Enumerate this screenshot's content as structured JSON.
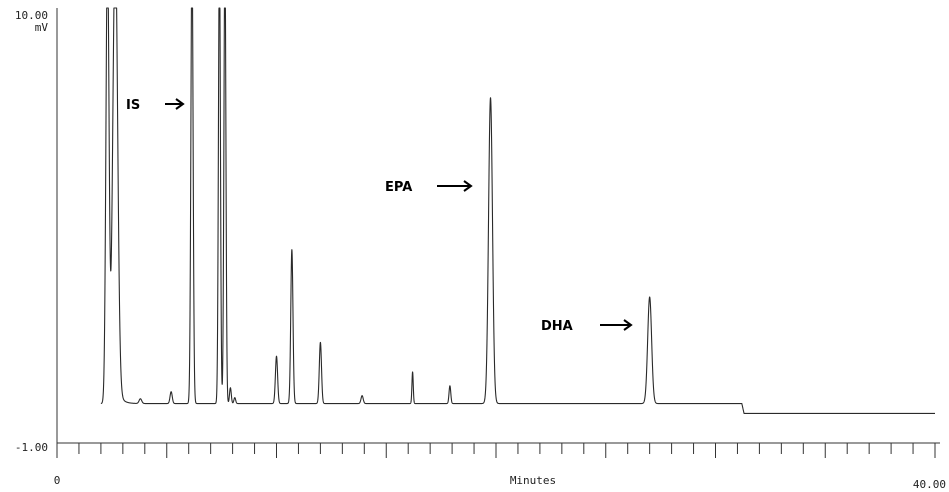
{
  "chart_data": {
    "type": "line",
    "title": "",
    "xlabel": "Minutes",
    "ylabel": "",
    "y_unit": "mV",
    "xlim": [
      0,
      40
    ],
    "ylim": [
      -1,
      10
    ],
    "x_tick_labels": [
      {
        "value": 0,
        "label": "0"
      },
      {
        "value": 40,
        "label": "40.00"
      }
    ],
    "y_tick_labels": [
      {
        "value": 10,
        "label": "10.00"
      },
      {
        "value": -1,
        "label": "-1.00"
      }
    ],
    "grid": false,
    "baseline": [
      {
        "x": 2.0,
        "y": 0.0
      },
      {
        "x": 31.2,
        "y": 0.0
      },
      {
        "x": 31.3,
        "y": -0.25
      },
      {
        "x": 40.0,
        "y": -0.25
      }
    ],
    "peaks": [
      {
        "x": 2.3,
        "height": 11.5,
        "width": 0.07
      },
      {
        "x": 2.65,
        "height": 11.5,
        "width": 0.11
      },
      {
        "x": 3.8,
        "height": 0.12,
        "width": 0.06
      },
      {
        "x": 5.2,
        "height": 0.3,
        "width": 0.05
      },
      {
        "x": 6.15,
        "height": 11.5,
        "width": 0.05
      },
      {
        "x": 7.4,
        "height": 11.5,
        "width": 0.045
      },
      {
        "x": 7.65,
        "height": 11.5,
        "width": 0.045
      },
      {
        "x": 7.9,
        "height": 0.4,
        "width": 0.04
      },
      {
        "x": 8.1,
        "height": 0.15,
        "width": 0.04
      },
      {
        "x": 10.0,
        "height": 1.2,
        "width": 0.05
      },
      {
        "x": 10.7,
        "height": 3.9,
        "width": 0.05
      },
      {
        "x": 12.0,
        "height": 1.55,
        "width": 0.05
      },
      {
        "x": 13.9,
        "height": 0.2,
        "width": 0.05
      },
      {
        "x": 16.2,
        "height": 0.8,
        "width": 0.03
      },
      {
        "x": 17.9,
        "height": 0.45,
        "width": 0.04
      },
      {
        "x": 19.75,
        "height": 7.75,
        "width": 0.09
      },
      {
        "x": 27.0,
        "height": 2.7,
        "width": 0.09
      }
    ],
    "annotations": [
      {
        "label": "IS",
        "x": 6.15
      },
      {
        "label": "EPA",
        "x": 19.75
      },
      {
        "label": "DHA",
        "x": 27.0
      }
    ]
  }
}
